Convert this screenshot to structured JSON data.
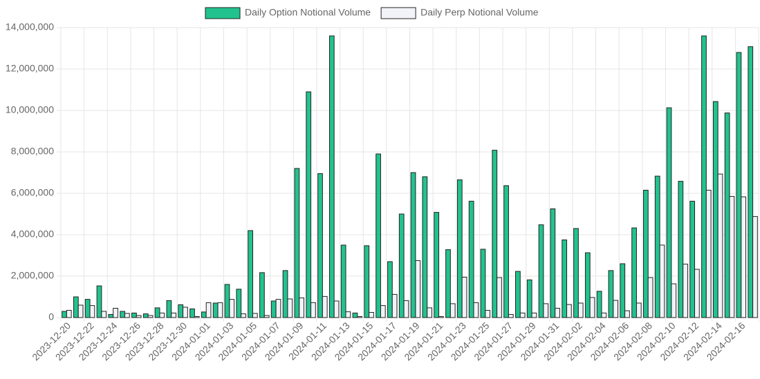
{
  "chart_data": {
    "type": "bar",
    "categories": [
      "2023-12-20",
      null,
      "2023-12-22",
      null,
      "2023-12-24",
      null,
      "2023-12-26",
      null,
      "2023-12-28",
      null,
      "2023-12-30",
      null,
      "2024-01-01",
      null,
      "2024-01-03",
      null,
      "2024-01-05",
      null,
      "2024-01-07",
      null,
      "2024-01-09",
      null,
      "2024-01-11",
      null,
      "2024-01-13",
      null,
      "2024-01-15",
      null,
      "2024-01-17",
      null,
      "2024-01-19",
      null,
      "2024-01-21",
      null,
      "2024-01-23",
      null,
      "2024-01-25",
      null,
      "2024-01-27",
      null,
      "2024-01-29",
      null,
      "2024-01-31",
      null,
      "2024-02-02",
      null,
      "2024-02-04",
      null,
      "2024-02-06",
      null,
      "2024-02-08",
      null,
      "2024-02-10",
      null,
      "2024-02-12",
      null,
      "2024-02-14",
      null,
      "2024-02-16",
      null
    ],
    "series": [
      {
        "name": "Daily Option Notional Volume",
        "color": "#22c28e",
        "values": [
          300000,
          1000000,
          880000,
          1530000,
          150000,
          300000,
          220000,
          180000,
          470000,
          820000,
          620000,
          420000,
          270000,
          700000,
          1600000,
          1370000,
          4200000,
          2170000,
          800000,
          2270000,
          7200000,
          10900000,
          6950000,
          13600000,
          3500000,
          220000,
          3470000,
          7900000,
          2700000,
          5000000,
          7000000,
          6800000,
          5080000,
          3280000,
          6650000,
          5620000,
          3300000,
          8080000,
          6370000,
          2230000,
          1820000,
          4480000,
          5250000,
          3750000,
          4300000,
          3130000,
          1270000,
          2270000,
          2600000,
          4330000,
          6150000,
          6830000,
          10130000,
          6580000,
          5620000,
          13600000,
          10430000,
          9880000,
          12800000,
          13080000
        ]
      },
      {
        "name": "Daily Perp Notional Volume",
        "color": "#f1f3f8",
        "values": [
          350000,
          600000,
          580000,
          300000,
          450000,
          200000,
          100000,
          100000,
          220000,
          220000,
          500000,
          50000,
          720000,
          720000,
          880000,
          180000,
          200000,
          100000,
          880000,
          900000,
          950000,
          720000,
          1020000,
          800000,
          280000,
          50000,
          250000,
          580000,
          1120000,
          820000,
          2750000,
          470000,
          50000,
          670000,
          1950000,
          720000,
          350000,
          1930000,
          150000,
          220000,
          220000,
          670000,
          450000,
          630000,
          700000,
          970000,
          220000,
          830000,
          330000,
          700000,
          1930000,
          3500000,
          1630000,
          2580000,
          2330000,
          6150000,
          6930000,
          5850000,
          5830000,
          4880000
        ]
      }
    ],
    "ylim": [
      0,
      14000000
    ],
    "yticks": [
      0,
      {
        "value": 2000000,
        "label": "2,000,000"
      },
      {
        "value": 4000000,
        "label": "4,000,000"
      },
      {
        "value": 6000000,
        "label": "6,000,000"
      },
      {
        "value": 8000000,
        "label": "8,000,000"
      },
      {
        "value": 10000000,
        "label": "10,000,000"
      },
      {
        "value": 12000000,
        "label": "12,000,000"
      },
      {
        "value": 14000000,
        "label": "14,000,000"
      }
    ],
    "grid": true,
    "legend": "top"
  }
}
